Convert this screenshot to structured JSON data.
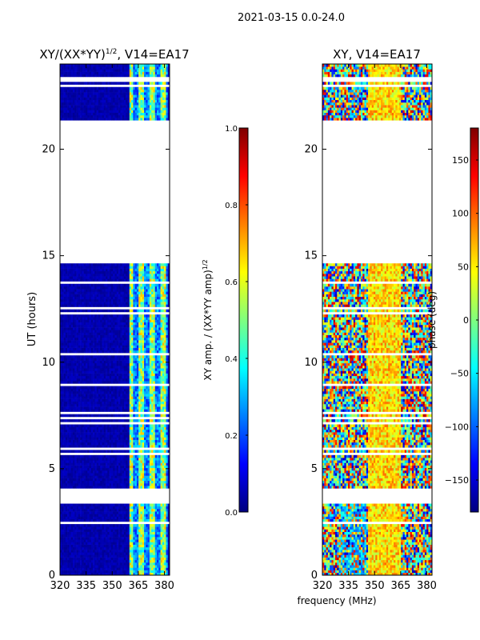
{
  "figure_title": "2021-03-15 0.0-24.0",
  "colors": {
    "jet_stops": [
      "#00007f",
      "#0000ff",
      "#007fff",
      "#00ffff",
      "#7fff7f",
      "#ffff00",
      "#ff7f00",
      "#ff0000",
      "#7f0000"
    ],
    "gap": "#ffffff",
    "frame": "#000000"
  },
  "chart_data": [
    {
      "type": "heatmap",
      "title": "XY/(XX*YY)^1/2, V14=EA17",
      "title_main": "XY/(XX*YY)",
      "title_exp": "1/2",
      "title_tail": ", V14=EA17",
      "xlabel": "",
      "ylabel": "UT (hours)",
      "xlim": [
        320,
        383
      ],
      "ylim": [
        0,
        24
      ],
      "xticks": [
        320,
        335,
        350,
        365,
        380
      ],
      "xtick_labels": [
        "320",
        "335",
        "350",
        "365",
        "380"
      ],
      "yticks": [
        0,
        5,
        10,
        15,
        20
      ],
      "ytick_labels": [
        "0",
        "5",
        "10",
        "15",
        "20"
      ],
      "colorbar": {
        "label": "XY amp. / (XX*YY amp)^1/2",
        "label_main": "XY amp. / (XX*YY amp)",
        "label_exp": "1/2",
        "range": [
          0.0,
          1.0
        ],
        "ticks": [
          0.0,
          0.2,
          0.4,
          0.6,
          0.8,
          1.0
        ],
        "tick_labels": [
          "0.0",
          "0.2",
          "0.4",
          "0.6",
          "0.8",
          "1.0"
        ]
      },
      "empty_time_ranges_hours": [
        [
          3.4,
          4.1
        ],
        [
          14.6,
          21.4
        ]
      ],
      "note": "amplitude near 0 below ~360 MHz; elevated (0.3-0.7) in narrow channels between ~360 and ~380 MHz"
    },
    {
      "type": "heatmap",
      "title": "XY, V14=EA17",
      "xlabel": "frequency (MHz)",
      "ylabel": "",
      "xlim": [
        320,
        383
      ],
      "ylim": [
        0,
        24
      ],
      "xticks": [
        320,
        335,
        350,
        365,
        380
      ],
      "xtick_labels": [
        "320",
        "335",
        "350",
        "365",
        "380"
      ],
      "yticks": [
        0,
        5,
        10,
        15,
        20
      ],
      "ytick_labels": [
        "0",
        "5",
        "10",
        "15",
        "20"
      ],
      "colorbar": {
        "label": "phase (deg)",
        "range": [
          -180,
          180
        ],
        "ticks": [
          -150,
          -100,
          -50,
          0,
          50,
          100,
          150
        ],
        "tick_labels": [
          "−150",
          "−100",
          "−50",
          "0",
          "50",
          "100",
          "150"
        ]
      },
      "empty_time_ranges_hours": [
        [
          3.4,
          4.1
        ],
        [
          14.6,
          21.4
        ]
      ],
      "note": "phase varies widely; band of ~0-60 deg near 345-365 MHz"
    }
  ]
}
